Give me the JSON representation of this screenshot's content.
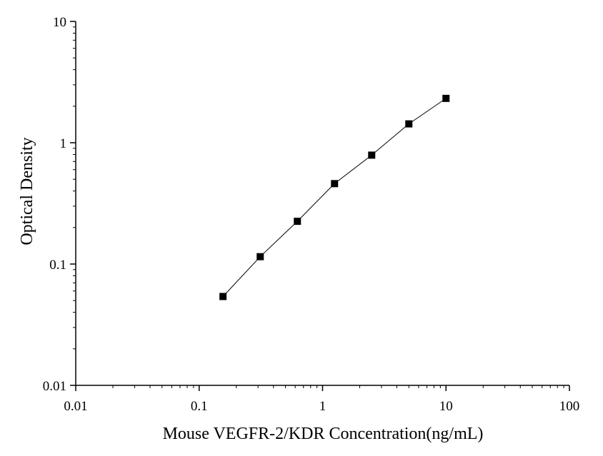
{
  "chart_data": {
    "type": "scatter",
    "title": "",
    "xlabel": "Mouse VEGFR-2/KDR Concentration(ng/mL)",
    "ylabel": "Optical Density",
    "xscale": "log",
    "yscale": "log",
    "xlim": [
      0.01,
      100
    ],
    "ylim": [
      0.01,
      10
    ],
    "xticks": [
      0.01,
      0.1,
      1,
      10,
      100
    ],
    "xtick_labels": [
      "0.01",
      "0.1",
      "1",
      "10",
      "100"
    ],
    "yticks": [
      0.01,
      0.1,
      1,
      10
    ],
    "ytick_labels": [
      "0.01",
      "0.1",
      "1",
      "10"
    ],
    "grid": false,
    "legend": "none",
    "series": [
      {
        "x": [
          0.156,
          0.3125,
          0.625,
          1.25,
          2.5,
          5,
          10
        ],
        "y": [
          0.054,
          0.115,
          0.225,
          0.46,
          0.79,
          1.43,
          2.32
        ],
        "marker": "square",
        "connected": true,
        "color": "#000000"
      }
    ]
  }
}
